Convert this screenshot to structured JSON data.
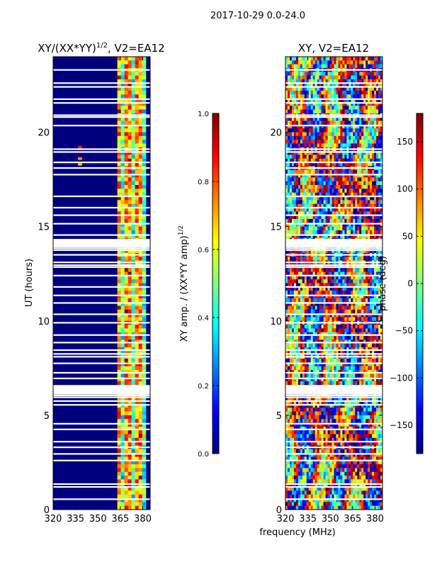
{
  "figure": {
    "suptitle": "2017-10-29 0.0-24.0",
    "xlabel": "frequency (MHz)"
  },
  "chart_data": [
    {
      "type": "heatmap",
      "title": "XY/(XX*YY)",
      "title_exponent": "1/2",
      "title_suffix": ", V2=EA12",
      "xlabel": "",
      "ylabel": "UT (hours)",
      "xlim": [
        320,
        385
      ],
      "ylim": [
        0,
        24
      ],
      "xticks": [
        320,
        335,
        350,
        365,
        380
      ],
      "yticks": [
        0,
        5,
        10,
        15,
        20
      ],
      "colormap": "jet",
      "colorbar": {
        "label": "XY amp. / (XX*YY amp)",
        "label_exponent": "1/2",
        "range": [
          0.0,
          1.0
        ],
        "ticks": [
          "0.0",
          "0.2",
          "0.4",
          "0.6",
          "0.8",
          "1.0"
        ]
      },
      "low_color": "#00007f",
      "bright_band_mhz": [
        363,
        382
      ],
      "flagged_hours": [
        0.55,
        1.2,
        1.35,
        2.6,
        2.95,
        3.3,
        3.6,
        4.25,
        4.55,
        5.55,
        5.75,
        5.95,
        6.05,
        6.15,
        6.25,
        6.95,
        7.25,
        7.75,
        8.1,
        8.25,
        8.45,
        8.85,
        9.25,
        9.9,
        10.35,
        10.95,
        11.35,
        11.8,
        12.4,
        12.85,
        12.95,
        13.1,
        13.5,
        13.75,
        13.85,
        14.0,
        14.3,
        14.55,
        15.15,
        15.6,
        16.0,
        16.6,
        17.75,
        18.1,
        18.4,
        18.95,
        19.1,
        20.35,
        20.8,
        20.9,
        21.55,
        21.75,
        22.4,
        22.6,
        23.3
      ]
    },
    {
      "type": "heatmap",
      "title": "XY, V2=EA12",
      "xlabel": "",
      "ylabel": "",
      "xlim": [
        320,
        385
      ],
      "ylim": [
        0,
        24
      ],
      "xticks": [
        320,
        335,
        350,
        365,
        380
      ],
      "yticks": [
        0,
        5,
        10,
        15,
        20
      ],
      "colormap": "jet",
      "colorbar": {
        "label": "phase (deg)",
        "range": [
          -180,
          180
        ],
        "ticks": [
          "−150",
          "−100",
          "−50",
          "0",
          "50",
          "100",
          "150"
        ],
        "tick_values": [
          -150,
          -100,
          -50,
          0,
          50,
          100,
          150
        ]
      },
      "flagged_hours": [
        0.55,
        1.2,
        1.35,
        2.6,
        2.95,
        3.3,
        3.6,
        4.25,
        4.55,
        5.55,
        5.75,
        5.95,
        6.05,
        6.15,
        6.25,
        6.95,
        7.25,
        7.75,
        8.1,
        8.25,
        8.45,
        8.85,
        9.25,
        9.9,
        10.35,
        10.95,
        11.35,
        11.8,
        12.4,
        12.85,
        12.95,
        13.1,
        13.5,
        13.75,
        13.85,
        14.0,
        14.3,
        14.55,
        15.15,
        15.6,
        16.0,
        16.6,
        17.75,
        18.1,
        18.4,
        18.95,
        19.1,
        20.35,
        20.8,
        20.9,
        21.55,
        21.75,
        22.4,
        22.6,
        23.3
      ]
    }
  ]
}
